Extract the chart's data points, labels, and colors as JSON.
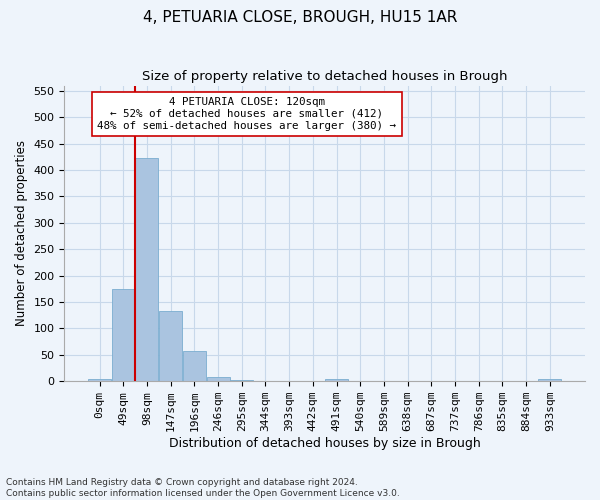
{
  "title": "4, PETUARIA CLOSE, BROUGH, HU15 1AR",
  "subtitle": "Size of property relative to detached houses in Brough",
  "xlabel": "Distribution of detached houses by size in Brough",
  "ylabel": "Number of detached properties",
  "bar_values": [
    5,
    175,
    422,
    133,
    58,
    8,
    3,
    0,
    0,
    0,
    5,
    0,
    0,
    0,
    0,
    0,
    0,
    0,
    0,
    4
  ],
  "bar_labels": [
    "0sqm",
    "49sqm",
    "98sqm",
    "147sqm",
    "196sqm",
    "246sqm",
    "295sqm",
    "344sqm",
    "393sqm",
    "442sqm",
    "491sqm",
    "540sqm",
    "589sqm",
    "638sqm",
    "687sqm",
    "737sqm",
    "786sqm",
    "835sqm",
    "884sqm",
    "933sqm"
  ],
  "bar_color": "#aac4e0",
  "bar_edge_color": "#7aadd0",
  "grid_color": "#c8d8ea",
  "background_color": "#eef4fb",
  "vline_x": 1.5,
  "vline_color": "#cc0000",
  "annotation_text": "4 PETUARIA CLOSE: 120sqm\n← 52% of detached houses are smaller (412)\n48% of semi-detached houses are larger (380) →",
  "annotation_box_facecolor": "#ffffff",
  "annotation_box_edgecolor": "#cc0000",
  "ylim": [
    0,
    560
  ],
  "yticks": [
    0,
    50,
    100,
    150,
    200,
    250,
    300,
    350,
    400,
    450,
    500,
    550
  ],
  "footnote": "Contains HM Land Registry data © Crown copyright and database right 2024.\nContains public sector information licensed under the Open Government Licence v3.0.",
  "title_fontsize": 11,
  "subtitle_fontsize": 9.5,
  "xlabel_fontsize": 9,
  "ylabel_fontsize": 8.5,
  "tick_fontsize": 8,
  "annot_fontsize": 7.8,
  "footnote_fontsize": 6.5
}
